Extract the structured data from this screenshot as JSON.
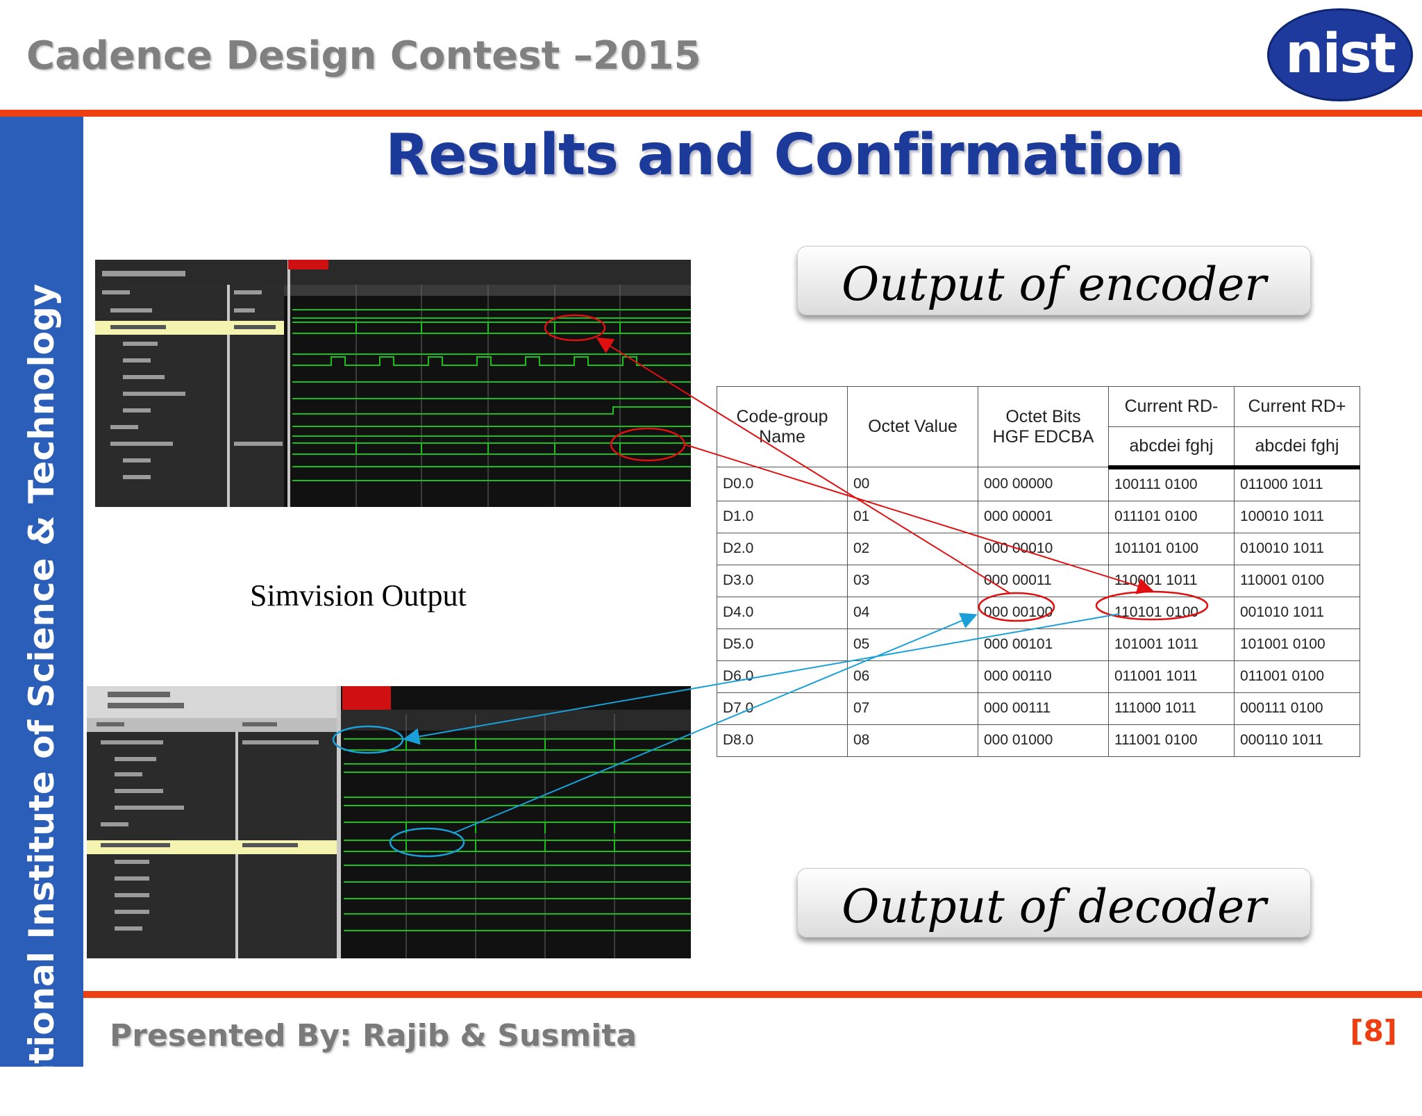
{
  "header": {
    "contest_title": "Cadence Design Contest –2015",
    "logo_text": "nist"
  },
  "sidebar": {
    "institute_name": "National Institute of Science & Technology"
  },
  "slide": {
    "title": "Results and Confirmation",
    "encoder_callout": "Output of encoder",
    "decoder_callout": "Output of decoder",
    "simvision_caption": "Simvision Output"
  },
  "table": {
    "headers": {
      "code_group_name": "Code-group Name",
      "octet_value": "Octet Value",
      "octet_bits": "Octet Bits",
      "octet_bits_sub": "HGF EDCBA",
      "rd_minus": "Current RD-",
      "rd_minus_sub": "abcdei fghj",
      "rd_plus": "Current RD+",
      "rd_plus_sub": "abcdei fghj"
    },
    "rows": [
      {
        "name": "D0.0",
        "octet": "00",
        "bits": "000 00000",
        "rdm": "100111 0100",
        "rdp": "011000 1011"
      },
      {
        "name": "D1.0",
        "octet": "01",
        "bits": "000 00001",
        "rdm": "011101 0100",
        "rdp": "100010 1011"
      },
      {
        "name": "D2.0",
        "octet": "02",
        "bits": "000 00010",
        "rdm": "101101 0100",
        "rdp": "010010 1011"
      },
      {
        "name": "D3.0",
        "octet": "03",
        "bits": "000 00011",
        "rdm": "110001 1011",
        "rdp": "110001 0100"
      },
      {
        "name": "D4.0",
        "octet": "04",
        "bits": "000 00100",
        "rdm": "110101 0100",
        "rdp": "001010 1011"
      },
      {
        "name": "D5.0",
        "octet": "05",
        "bits": "000 00101",
        "rdm": "101001 1011",
        "rdp": "101001 0100"
      },
      {
        "name": "D6.0",
        "octet": "06",
        "bits": "000 00110",
        "rdm": "011001 1011",
        "rdp": "011001 0100"
      },
      {
        "name": "D7.0",
        "octet": "07",
        "bits": "000 00111",
        "rdm": "111000 1011",
        "rdp": "000111 0100"
      },
      {
        "name": "D8.0",
        "octet": "08",
        "bits": "000 01000",
        "rdm": "111001 0100",
        "rdp": "000110 1011"
      }
    ]
  },
  "footer": {
    "presenter": "Presented By: Rajib & Susmita",
    "page_number": "[8]"
  },
  "colors": {
    "accent_rule": "#ee3f13",
    "sidebar": "#2a5eb8",
    "title_blue": "#1c3a9a",
    "encoder_arrow": "#e01010",
    "decoder_arrow": "#1aa0d8",
    "wave_green": "#18c018"
  }
}
